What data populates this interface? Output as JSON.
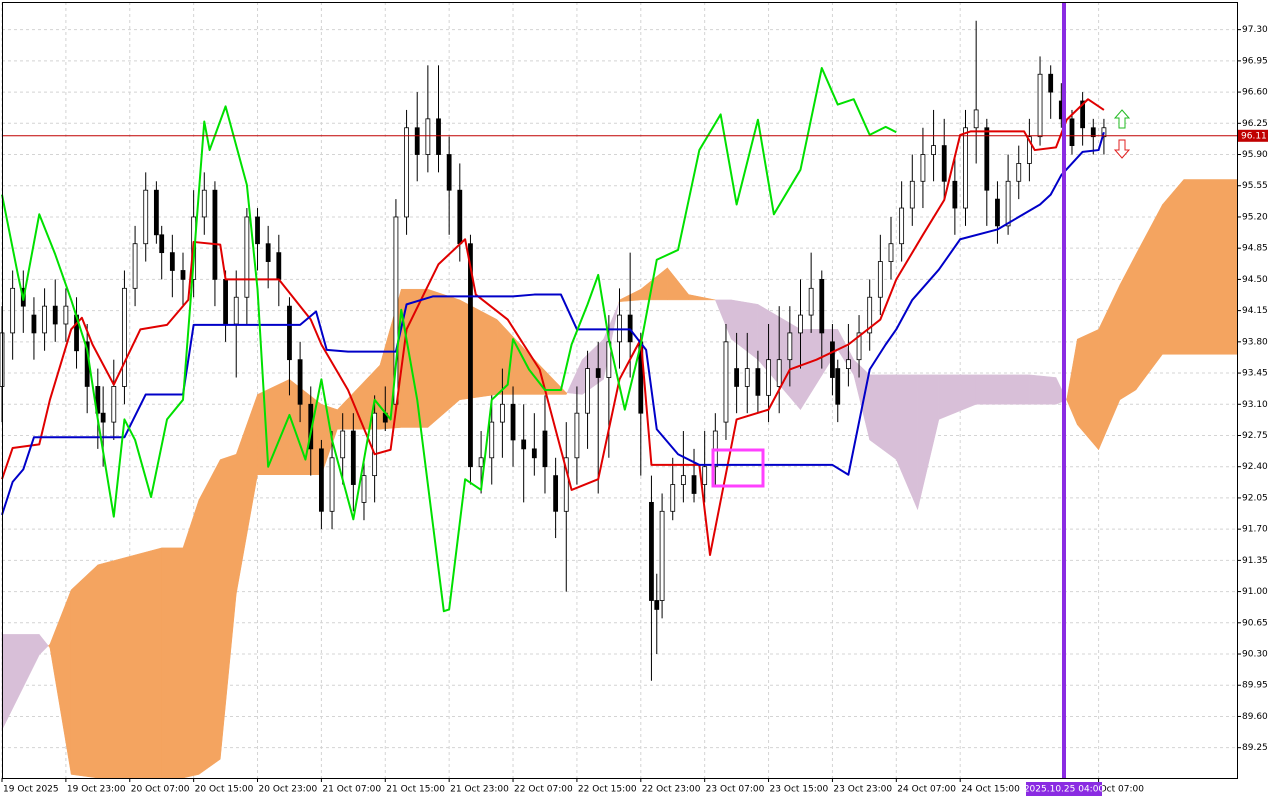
{
  "chart_data": {
    "type": "candlestick",
    "xlim": [
      0,
      232
    ],
    "ylim": [
      88.91,
      97.61
    ],
    "grid": true,
    "xticks": [
      {
        "value": 0,
        "label": "19 Oct 2025"
      },
      {
        "value": 12,
        "label": "19 Oct 23:00"
      },
      {
        "value": 24,
        "label": "20 Oct 07:00"
      },
      {
        "value": 36,
        "label": "20 Oct 15:00"
      },
      {
        "value": 48,
        "label": "20 Oct 23:00"
      },
      {
        "value": 60,
        "label": "21 Oct 07:00"
      },
      {
        "value": 72,
        "label": "21 Oct 15:00"
      },
      {
        "value": 84,
        "label": "21 Oct 23:00"
      },
      {
        "value": 96,
        "label": "22 Oct 07:00"
      },
      {
        "value": 108,
        "label": "22 Oct 15:00"
      },
      {
        "value": 120,
        "label": "22 Oct 23:00"
      },
      {
        "value": 132,
        "label": "23 Oct 07:00"
      },
      {
        "value": 144,
        "label": "23 Oct 15:00"
      },
      {
        "value": 156,
        "label": "23 Oct 23:00"
      },
      {
        "value": 168,
        "label": "24 Oct 07:00"
      },
      {
        "value": 180,
        "label": "24 Oct 15:00"
      },
      {
        "value": 206,
        "label": "Oct 07:00"
      }
    ],
    "yticks": [
      {
        "value": 97.3,
        "label": "97.30"
      },
      96.95,
      {
        "value": 96.6,
        "label": "96.60"
      },
      96.25,
      {
        "value": 95.9,
        "label": "95.90"
      },
      95.55,
      {
        "value": 95.2,
        "label": "95.20"
      },
      94.85,
      {
        "value": 94.5,
        "label": "94.50"
      },
      94.15,
      {
        "value": 93.8,
        "label": "93.80"
      },
      93.45,
      {
        "value": 93.1,
        "label": "93.10"
      },
      92.75,
      {
        "value": 92.4,
        "label": "92.40"
      },
      92.05,
      {
        "value": 91.7,
        "label": "91.70"
      },
      91.35,
      {
        "value": 91.0,
        "label": "91.00"
      },
      90.65,
      {
        "value": 90.3,
        "label": "90.30"
      },
      89.95,
      {
        "value": 89.6,
        "label": "89.60"
      },
      89.25
    ],
    "candles": {
      "up_color": "#ffffff",
      "down_color": "#000000",
      "wick_color": "#000000",
      "x": [
        0,
        2,
        4,
        6,
        8,
        10,
        12,
        14,
        16,
        18,
        19,
        21,
        23,
        25,
        27,
        29,
        30,
        32,
        34,
        36,
        38,
        40,
        42,
        44,
        46,
        48,
        50,
        52,
        54,
        56,
        58,
        60,
        62,
        64,
        66,
        68,
        70,
        72,
        74,
        76,
        78,
        80,
        82,
        84,
        86,
        88,
        90,
        92,
        94,
        96,
        98,
        100,
        102,
        104,
        106,
        108,
        110,
        112,
        114,
        116,
        118,
        120,
        122,
        123,
        124,
        126,
        128,
        130,
        132,
        134,
        136,
        138,
        140,
        142,
        144,
        146,
        148,
        150,
        152,
        154,
        156,
        157,
        159,
        161,
        163,
        165,
        167,
        169,
        171,
        173,
        175,
        177,
        179,
        181,
        183,
        185,
        187,
        189,
        191,
        193,
        195,
        197,
        199,
        201,
        203,
        205,
        207
      ],
      "open": [
        93.3,
        93.9,
        94.4,
        94.1,
        93.9,
        94.2,
        94.0,
        94.1,
        93.8,
        93.3,
        93.0,
        92.9,
        93.3,
        94.4,
        94.9,
        95.5,
        95.0,
        94.8,
        94.6,
        94.5,
        95.2,
        95.5,
        94.5,
        94.0,
        94.3,
        95.2,
        94.9,
        94.8,
        94.2,
        93.6,
        93.1,
        92.6,
        91.9,
        92.5,
        92.8,
        92.0,
        92.3,
        93.0,
        93.1,
        95.2,
        96.2,
        95.9,
        96.3,
        95.9,
        95.5,
        94.9,
        92.4,
        92.5,
        92.9,
        93.1,
        92.7,
        92.6,
        92.8,
        92.3,
        91.9,
        92.5,
        93.0,
        93.5,
        93.4,
        93.8,
        94.1,
        93.8,
        92.0,
        90.9,
        90.9,
        91.9,
        92.2,
        92.3,
        92.2,
        92.4,
        92.9,
        93.5,
        93.3,
        93.5,
        93.2,
        93.3,
        93.6,
        93.9,
        94.1,
        94.5,
        93.8,
        93.5,
        93.5,
        93.6,
        93.9,
        94.3,
        94.7,
        94.9,
        95.3,
        95.6,
        95.9,
        96.0,
        95.6,
        95.3,
        96.2,
        96.2,
        95.4,
        95.1,
        95.6,
        95.8,
        96.1,
        96.8,
        96.5,
        96.3,
        96.5,
        96.2,
        96.1
      ],
      "high": [
        94.2,
        94.6,
        94.6,
        94.3,
        94.4,
        94.5,
        94.4,
        94.3,
        94.0,
        93.5,
        93.3,
        93.6,
        94.6,
        95.1,
        95.7,
        95.6,
        95.1,
        95.0,
        94.8,
        95.5,
        95.7,
        95.6,
        94.6,
        94.6,
        95.3,
        95.3,
        95.1,
        95.0,
        94.3,
        93.8,
        93.3,
        92.7,
        92.8,
        93.0,
        93.0,
        92.5,
        93.2,
        93.3,
        95.4,
        96.4,
        96.6,
        96.9,
        96.9,
        96.1,
        95.8,
        95.0,
        92.8,
        93.2,
        93.5,
        93.3,
        93.1,
        93.0,
        93.2,
        92.5,
        92.9,
        93.3,
        93.7,
        93.8,
        94.1,
        94.4,
        94.8,
        93.9,
        92.3,
        91.2,
        92.1,
        92.5,
        92.8,
        92.6,
        92.8,
        93.0,
        94.0,
        93.9,
        93.9,
        93.7,
        94.0,
        94.2,
        94.2,
        94.5,
        94.8,
        94.6,
        94.0,
        93.6,
        94.0,
        94.1,
        94.5,
        95.0,
        95.2,
        95.6,
        95.9,
        96.2,
        96.4,
        96.3,
        95.9,
        96.4,
        97.4,
        96.3,
        95.6,
        95.9,
        96.0,
        96.3,
        97.0,
        96.9,
        96.7,
        96.4,
        96.6,
        96.3,
        96.3
      ],
      "low": [
        92.9,
        93.6,
        93.9,
        93.6,
        93.7,
        93.8,
        93.8,
        93.5,
        93.0,
        92.6,
        92.4,
        92.7,
        93.1,
        94.2,
        94.7,
        94.9,
        94.5,
        94.3,
        94.2,
        94.3,
        95.0,
        94.2,
        93.8,
        93.4,
        94.0,
        94.6,
        94.4,
        94.2,
        93.2,
        92.9,
        92.3,
        91.7,
        91.7,
        92.2,
        91.9,
        91.8,
        92.0,
        92.8,
        93.0,
        95.0,
        95.6,
        95.7,
        95.7,
        95.0,
        94.7,
        92.2,
        92.1,
        92.2,
        92.5,
        92.4,
        92.0,
        92.3,
        92.1,
        91.6,
        91.0,
        92.2,
        92.6,
        92.1,
        92.5,
        93.5,
        93.4,
        92.3,
        90.0,
        90.3,
        90.7,
        91.8,
        92.0,
        92.0,
        92.0,
        92.2,
        92.7,
        93.0,
        93.0,
        93.0,
        92.9,
        93.0,
        93.3,
        93.5,
        93.9,
        93.5,
        93.2,
        92.9,
        93.3,
        93.4,
        93.7,
        94.1,
        94.5,
        94.7,
        95.1,
        95.3,
        95.6,
        95.4,
        95.0,
        95.1,
        95.8,
        95.1,
        94.9,
        95.0,
        95.4,
        95.6,
        96.0,
        96.3,
        96.2,
        95.9,
        96.0,
        95.9,
        95.9
      ],
      "close": [
        93.9,
        94.4,
        94.2,
        93.9,
        94.2,
        94.0,
        94.2,
        93.7,
        93.3,
        93.0,
        92.9,
        93.3,
        94.4,
        94.9,
        95.5,
        95.0,
        94.8,
        94.6,
        94.5,
        95.2,
        95.5,
        94.5,
        94.0,
        94.3,
        95.2,
        94.9,
        94.7,
        94.5,
        93.6,
        93.1,
        92.6,
        91.9,
        92.5,
        92.8,
        92.2,
        92.3,
        93.0,
        92.9,
        95.2,
        96.2,
        95.9,
        96.3,
        95.9,
        95.5,
        94.9,
        92.4,
        92.5,
        92.9,
        93.1,
        92.7,
        92.6,
        92.5,
        92.4,
        91.9,
        92.5,
        93.0,
        93.5,
        93.4,
        93.8,
        94.1,
        93.8,
        93.0,
        90.9,
        90.8,
        91.9,
        92.2,
        92.3,
        92.1,
        92.4,
        92.8,
        93.8,
        93.3,
        93.5,
        93.2,
        93.6,
        93.6,
        93.9,
        94.1,
        94.4,
        93.9,
        93.4,
        93.1,
        93.6,
        93.9,
        94.3,
        94.7,
        94.9,
        95.3,
        95.6,
        95.9,
        96.0,
        95.6,
        95.3,
        96.2,
        96.4,
        95.5,
        95.1,
        95.6,
        95.8,
        96.1,
        96.8,
        96.6,
        96.3,
        96.0,
        96.2,
        96.1,
        96.2
      ]
    },
    "lines": [
      {
        "color": "#e00000",
        "x": [
          0,
          2,
          7,
          9,
          13,
          15,
          17,
          21,
          26,
          31,
          35,
          36,
          41,
          42,
          52,
          58,
          60,
          65,
          70,
          73,
          76,
          82,
          87,
          89,
          95,
          101,
          107,
          112,
          116,
          120,
          122,
          131,
          133,
          138,
          144,
          148,
          153,
          159,
          165,
          168,
          173,
          177,
          180,
          182,
          192,
          194,
          198,
          200,
          204,
          207
        ],
        "values": [
          92.26,
          92.61,
          92.65,
          93.15,
          93.94,
          94.07,
          93.77,
          93.32,
          93.94,
          93.99,
          94.27,
          94.92,
          94.89,
          94.5,
          94.5,
          94.05,
          93.77,
          93.26,
          92.54,
          92.59,
          93.94,
          94.67,
          94.95,
          94.33,
          94.05,
          93.49,
          92.14,
          92.26,
          93.38,
          93.83,
          92.42,
          92.42,
          91.41,
          92.93,
          93.04,
          93.49,
          93.6,
          93.77,
          94.05,
          94.5,
          95.0,
          95.39,
          96.12,
          96.16,
          96.16,
          95.95,
          95.98,
          96.29,
          96.52,
          96.4
        ]
      },
      {
        "color": "#0000c8",
        "x": [
          0,
          2,
          4,
          6,
          23,
          27,
          34,
          36,
          56,
          59,
          61,
          65,
          74,
          76,
          81,
          96,
          100,
          105,
          108,
          118,
          121,
          123,
          127,
          131,
          156,
          159,
          163,
          166,
          168,
          171,
          176,
          180,
          187,
          195,
          197,
          199,
          203,
          206,
          207
        ],
        "values": [
          91.86,
          92.23,
          92.37,
          92.73,
          92.73,
          93.21,
          93.21,
          93.99,
          93.99,
          94.14,
          93.71,
          93.69,
          93.69,
          94.22,
          94.31,
          94.31,
          94.33,
          94.33,
          93.94,
          93.94,
          93.71,
          92.82,
          92.54,
          92.42,
          92.42,
          92.31,
          93.49,
          93.77,
          93.94,
          94.27,
          94.61,
          94.95,
          95.06,
          95.34,
          95.45,
          95.67,
          95.93,
          95.95,
          96.15
        ]
      },
      {
        "color": "#00e000",
        "x": [
          0,
          3,
          4,
          7,
          10,
          13,
          16,
          18,
          21,
          23,
          25,
          28,
          31,
          34,
          38,
          39,
          42,
          46,
          48,
          50,
          54,
          57,
          60,
          62,
          66,
          70,
          73,
          75,
          78,
          83,
          84,
          87,
          90,
          92,
          95,
          96,
          99,
          102,
          105,
          107,
          110,
          112,
          114,
          117,
          120,
          123,
          127,
          131,
          135,
          138,
          142,
          145,
          150,
          154,
          157,
          160,
          163,
          166,
          168
        ],
        "values": [
          95.45,
          94.55,
          94.27,
          95.23,
          94.78,
          94.27,
          93.71,
          92.93,
          91.84,
          92.93,
          92.7,
          92.06,
          92.93,
          93.15,
          96.27,
          95.95,
          96.44,
          95.56,
          94.39,
          92.4,
          92.98,
          92.48,
          93.38,
          92.7,
          91.81,
          93.15,
          92.93,
          94.16,
          93.15,
          90.78,
          90.8,
          92.26,
          92.14,
          93.15,
          93.32,
          93.83,
          93.49,
          93.26,
          93.26,
          93.77,
          94.22,
          94.55,
          93.83,
          93.04,
          93.77,
          94.72,
          94.83,
          95.95,
          96.35,
          95.34,
          96.29,
          95.23,
          95.73,
          96.87,
          96.46,
          96.52,
          96.12,
          96.21,
          96.15
        ]
      }
    ],
    "cloud": {
      "up_color": "#f4a460",
      "down_color": "#d8bfd8",
      "x": [
        0,
        7,
        9,
        13,
        18,
        30,
        34,
        37,
        41,
        44,
        48,
        54,
        60,
        63,
        71,
        75,
        80,
        86,
        93,
        101,
        106,
        109,
        113,
        116,
        120,
        125,
        129,
        134,
        137,
        142,
        150,
        157,
        160,
        163,
        168,
        172,
        176,
        183,
        193,
        198,
        200,
        202,
        206,
        210,
        213,
        218,
        222,
        232
      ],
      "span_a": [
        89.45,
        90.29,
        90.41,
        91.02,
        91.3,
        91.49,
        91.49,
        92.03,
        92.48,
        92.54,
        93.21,
        93.38,
        93.1,
        93.04,
        93.54,
        94.39,
        94.39,
        94.27,
        94.05,
        93.54,
        93.23,
        93.21,
        93.38,
        94.27,
        94.39,
        94.63,
        94.33,
        94.27,
        93.83,
        93.6,
        93.04,
        93.71,
        93.43,
        92.7,
        92.48,
        91.92,
        92.93,
        93.1,
        93.1,
        93.1,
        93.15,
        93.83,
        93.94,
        94.44,
        94.78,
        95.34,
        95.62,
        95.62
      ],
      "span_b": [
        90.52,
        90.52,
        90.37,
        88.95,
        88.91,
        88.91,
        88.91,
        88.95,
        89.12,
        90.97,
        92.31,
        92.31,
        92.31,
        92.82,
        92.82,
        92.84,
        92.84,
        93.15,
        93.21,
        93.21,
        93.21,
        93.6,
        93.83,
        94.25,
        94.27,
        94.27,
        94.27,
        94.27,
        94.27,
        94.22,
        93.94,
        93.94,
        93.6,
        93.43,
        93.43,
        93.43,
        93.43,
        93.43,
        93.43,
        93.4,
        93.15,
        92.87,
        92.59,
        93.15,
        93.26,
        93.66,
        93.66,
        93.66
      ]
    },
    "last_price": 96.11,
    "last_price_color": "#c00000",
    "vline": {
      "x": 199.5,
      "label": "2025.10.25 04:00",
      "color": "#8a2be2"
    }
  }
}
